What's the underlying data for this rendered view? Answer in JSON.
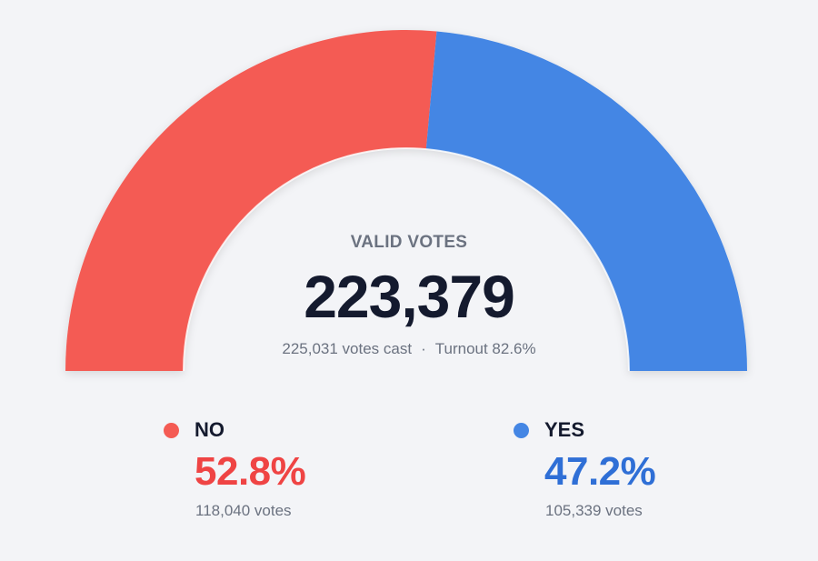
{
  "chart_data": {
    "type": "pie",
    "variant": "semicircle-gauge",
    "center": {
      "title": "VALID VOTES",
      "total": "223,379",
      "votes_cast": "225,031 votes cast",
      "separator": "·",
      "turnout": "Turnout 82.6%"
    },
    "series": [
      {
        "name": "NO",
        "percent_label": "52.8%",
        "votes_label": "118,040 votes",
        "votes": 118040,
        "share": 52.8,
        "color": "#f45b54"
      },
      {
        "name": "YES",
        "percent_label": "47.2%",
        "votes_label": "105,339 votes",
        "votes": 105339,
        "share": 47.2,
        "color": "#4486e4"
      }
    ],
    "accent_text_colors": {
      "NO": "#ef4444",
      "YES": "#2f6fd6"
    }
  }
}
